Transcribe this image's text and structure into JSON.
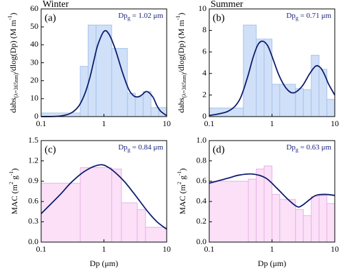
{
  "chart_data": [
    {
      "type": "histogram",
      "title": "Winter",
      "panel_label": "(a)",
      "annotation": [
        {
          "text": "Dp"
        },
        {
          "text": "g",
          "shift": "sub"
        },
        {
          "text": " = 1.02 μm"
        }
      ],
      "ylabel": [
        {
          "text": "dabs"
        },
        {
          "text": "(λ=365nm)",
          "shift": "sub"
        },
        {
          "text": "/dlog(Dp) (M m"
        },
        {
          "text": "-1",
          "shift": "sup"
        },
        {
          "text": ")"
        }
      ],
      "bins": [
        0.1,
        0.42,
        0.56,
        0.75,
        1.33,
        2.37,
        3.16,
        4.22,
        5.62,
        7.5,
        10
      ],
      "values": [
        2,
        28,
        51,
        51,
        38,
        13,
        11,
        14,
        5,
        5
      ],
      "fit": {
        "x": [
          0.1,
          0.2,
          0.3,
          0.4,
          0.5,
          0.6,
          0.7,
          0.8,
          1.0,
          1.2,
          1.5,
          2,
          2.5,
          3,
          3.5,
          4,
          4.8,
          6,
          7,
          8,
          10
        ],
        "values": [
          0,
          0.3,
          2,
          6,
          13,
          22,
          32,
          40,
          47.5,
          46,
          38,
          24,
          15,
          11.5,
          11,
          12,
          14,
          11,
          6,
          3,
          0.5
        ]
      },
      "fill": "#cfe0f8",
      "edge": "#a9c4ec",
      "line_color": "#0d1b6e",
      "xlim": [
        0.1,
        10
      ],
      "xticks": [
        0.1,
        1,
        10
      ],
      "log_x": true,
      "ylim": [
        0,
        60
      ],
      "yticks": [
        0,
        10,
        20,
        30,
        40,
        50,
        60
      ]
    },
    {
      "type": "histogram",
      "title": "Summer",
      "panel_label": "(b)",
      "annotation": [
        {
          "text": "Dp"
        },
        {
          "text": "g",
          "shift": "sub"
        },
        {
          "text": " = 0.71 μm"
        }
      ],
      "ylabel": [
        {
          "text": "dabs"
        },
        {
          "text": "(λ=365nm)",
          "shift": "sub"
        },
        {
          "text": "/dlog(Dp) (M m"
        },
        {
          "text": "-1",
          "shift": "sup"
        },
        {
          "text": ")"
        }
      ],
      "bins": [
        0.1,
        0.35,
        0.56,
        0.75,
        1.0,
        1.33,
        2.37,
        3.16,
        4.22,
        5.62,
        7.5,
        10
      ],
      "values": [
        0.8,
        8.5,
        7.2,
        7.2,
        3.0,
        3.0,
        2.6,
        2.5,
        5.7,
        4.4,
        1.6
      ],
      "fit": {
        "x": [
          0.1,
          0.2,
          0.3,
          0.4,
          0.5,
          0.6,
          0.71,
          0.85,
          1,
          1.3,
          1.7,
          2.2,
          3,
          4,
          5,
          6,
          7,
          8,
          10
        ],
        "values": [
          0.1,
          0.5,
          1.5,
          3.5,
          5.5,
          6.7,
          7,
          6.6,
          5.6,
          3.8,
          2.6,
          2.2,
          2.8,
          4,
          4.7,
          4.5,
          3.8,
          3.0,
          2.0
        ]
      },
      "fill": "#cfe0f8",
      "edge": "#a9c4ec",
      "line_color": "#0d1b6e",
      "xlim": [
        0.1,
        10
      ],
      "xticks": [
        0.1,
        1,
        10
      ],
      "log_x": true,
      "ylim": [
        0,
        10
      ],
      "yticks": [
        0,
        2,
        4,
        6,
        8,
        10
      ]
    },
    {
      "type": "histogram",
      "panel_label": "(c)",
      "annotation": [
        {
          "text": "Dp"
        },
        {
          "text": "g",
          "shift": "sub"
        },
        {
          "text": " = 0.84 μm"
        }
      ],
      "ylabel": [
        {
          "text": "MAC (m"
        },
        {
          "text": "2",
          "shift": "sup"
        },
        {
          "text": " g"
        },
        {
          "text": "-1",
          "shift": "sup"
        },
        {
          "text": ")"
        }
      ],
      "xlabel": "Dp (μm)",
      "bins": [
        0.1,
        0.42,
        1.33,
        1.9,
        3.4,
        4.6,
        10
      ],
      "values": [
        0.87,
        1.1,
        1.08,
        0.58,
        0.48,
        0.22
      ],
      "fit": {
        "x": [
          0.1,
          0.2,
          0.3,
          0.5,
          0.84,
          1.2,
          2,
          3,
          5,
          7,
          10
        ],
        "values": [
          0.42,
          0.7,
          0.88,
          1.05,
          1.14,
          1.1,
          0.92,
          0.72,
          0.45,
          0.3,
          0.19
        ]
      },
      "fill": "#fbe0f8",
      "edge": "#e6b2e6",
      "line_color": "#0d1b6e",
      "xlim": [
        0.1,
        10
      ],
      "xticks": [
        0.1,
        1,
        10
      ],
      "log_x": true,
      "ylim": [
        0,
        1.5
      ],
      "yticks": [
        {
          "value": 0,
          "label": "0.0"
        },
        0.3,
        0.6,
        0.9,
        1.2,
        1.5
      ]
    },
    {
      "type": "histogram",
      "panel_label": "(d)",
      "annotation": [
        {
          "text": "Dp"
        },
        {
          "text": "g",
          "shift": "sub"
        },
        {
          "text": " = 0.63 μm"
        }
      ],
      "ylabel": [
        {
          "text": "MAC (m"
        },
        {
          "text": "2",
          "shift": "sup"
        },
        {
          "text": " g"
        },
        {
          "text": "-1",
          "shift": "sup"
        },
        {
          "text": ")"
        }
      ],
      "xlabel": "Dp (μm)",
      "bins": [
        0.1,
        0.42,
        0.56,
        0.75,
        1.0,
        1.33,
        2.37,
        3.16,
        4.22,
        5.62,
        7.5,
        10
      ],
      "values": [
        0.6,
        0.62,
        0.72,
        0.75,
        0.47,
        0.42,
        0.32,
        0.26,
        0.45,
        0.46,
        0.38
      ],
      "fit": {
        "x": [
          0.1,
          0.2,
          0.3,
          0.5,
          0.8,
          1.2,
          1.8,
          2.5,
          3,
          4,
          5,
          7,
          10
        ],
        "values": [
          0.58,
          0.63,
          0.66,
          0.67,
          0.63,
          0.53,
          0.42,
          0.35,
          0.36,
          0.42,
          0.46,
          0.47,
          0.46
        ]
      },
      "fill": "#fbe0f8",
      "edge": "#e6b2e6",
      "line_color": "#0d1b6e",
      "xlim": [
        0.1,
        10
      ],
      "xticks": [
        0.1,
        1,
        10
      ],
      "log_x": true,
      "ylim": [
        0,
        1.0
      ],
      "yticks": [
        {
          "value": 0,
          "label": "0.0"
        },
        0.2,
        0.4,
        0.6,
        0.8,
        {
          "value": 1,
          "label": "1.0"
        }
      ]
    }
  ]
}
